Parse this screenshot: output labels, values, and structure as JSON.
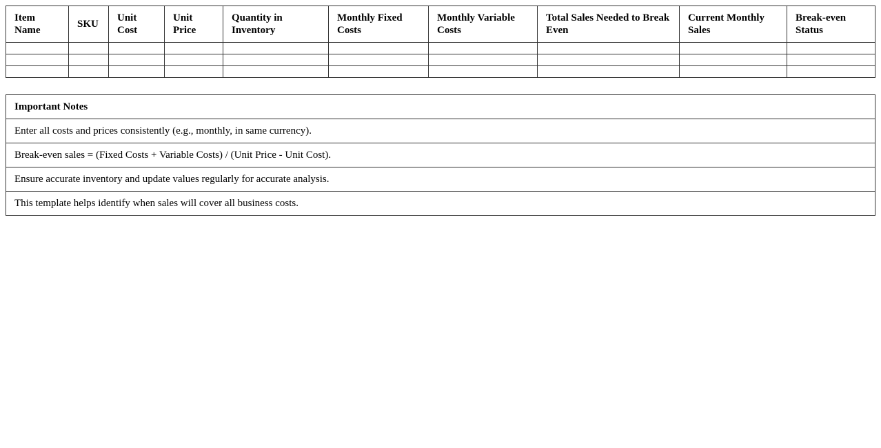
{
  "table": {
    "headers": [
      "Item Name",
      "SKU",
      "Unit Cost",
      "Unit Price",
      "Quantity in Inventory",
      "Monthly Fixed Costs",
      "Monthly Variable Costs",
      "Total Sales Needed to Break Even",
      "Current Monthly Sales",
      "Break-even Status"
    ],
    "rows": [
      [
        "",
        "",
        "",
        "",
        "",
        "",
        "",
        "",
        "",
        ""
      ],
      [
        "",
        "",
        "",
        "",
        "",
        "",
        "",
        "",
        "",
        ""
      ],
      [
        "",
        "",
        "",
        "",
        "",
        "",
        "",
        "",
        "",
        ""
      ]
    ]
  },
  "notes": {
    "title": "Important Notes",
    "items": [
      "Enter all costs and prices consistently (e.g., monthly, in same currency).",
      "Break-even sales = (Fixed Costs + Variable Costs) / (Unit Price - Unit Cost).",
      "Ensure accurate inventory and update values regularly for accurate analysis.",
      "This template helps identify when sales will cover all business costs."
    ]
  }
}
